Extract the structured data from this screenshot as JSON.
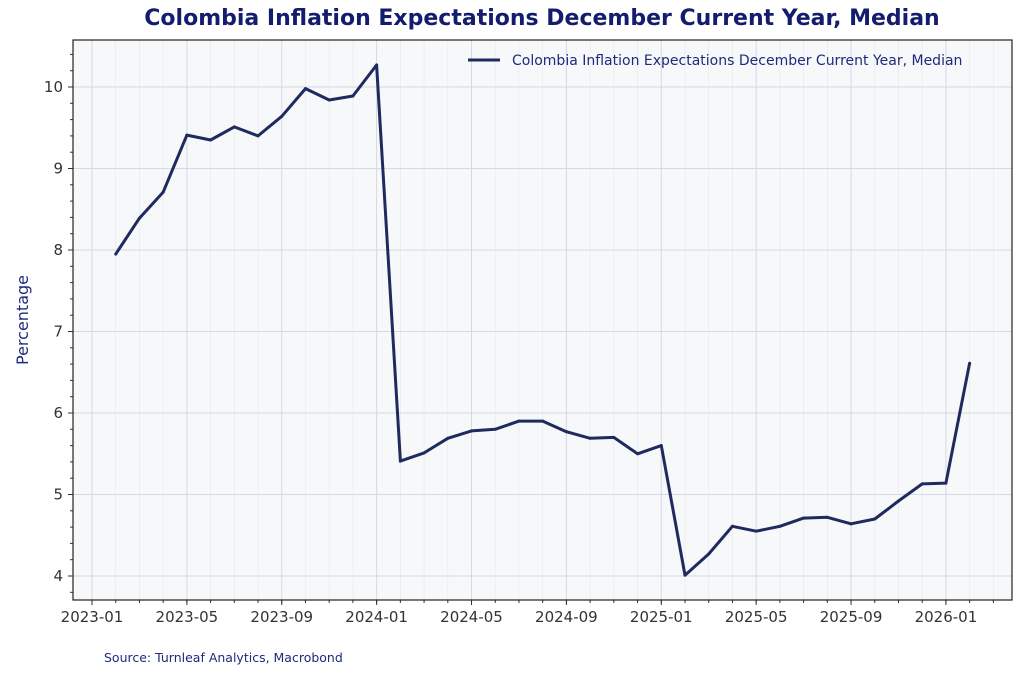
{
  "chart_data": {
    "type": "line",
    "title": "Colombia Inflation Expectations December Current Year, Median",
    "xlabel": "",
    "ylabel": "Percentage",
    "ylim": [
      3.7,
      10.55
    ],
    "yticks": [
      4,
      5,
      6,
      7,
      8,
      9,
      10
    ],
    "xticks": [
      "2023-01",
      "2023-05",
      "2023-09",
      "2024-01",
      "2024-05",
      "2024-09",
      "2025-01",
      "2025-05",
      "2025-09",
      "2026-01"
    ],
    "xlim": [
      "2022-12-08",
      "2026-04-10"
    ],
    "grid": true,
    "legend_position": "top-right",
    "series": [
      {
        "name": "Colombia Inflation Expectations December Current Year, Median",
        "color": "#1f2a5e",
        "x": [
          "2023-02",
          "2023-03",
          "2023-04",
          "2023-05",
          "2023-06",
          "2023-07",
          "2023-08",
          "2023-09",
          "2023-10",
          "2023-11",
          "2023-12",
          "2024-01",
          "2024-02",
          "2024-03",
          "2024-04",
          "2024-05",
          "2024-06",
          "2024-07",
          "2024-08",
          "2024-09",
          "2024-10",
          "2024-11",
          "2024-12",
          "2025-01",
          "2025-02",
          "2025-03",
          "2025-04",
          "2025-05",
          "2025-06",
          "2025-07",
          "2025-08",
          "2025-09",
          "2025-10",
          "2025-11",
          "2025-12",
          "2026-01",
          "2026-02"
        ],
        "values": [
          7.95,
          8.39,
          8.71,
          9.41,
          9.35,
          9.51,
          9.4,
          9.64,
          9.98,
          9.84,
          9.89,
          10.27,
          5.41,
          5.51,
          5.69,
          5.78,
          5.8,
          5.9,
          5.9,
          5.77,
          5.69,
          5.7,
          5.5,
          5.6,
          4.01,
          4.27,
          4.61,
          4.55,
          4.61,
          4.71,
          4.72,
          4.64,
          4.7,
          4.92,
          5.13,
          5.14,
          6.61
        ]
      }
    ]
  },
  "source": "Source: Turnleaf Analytics, Macrobond"
}
